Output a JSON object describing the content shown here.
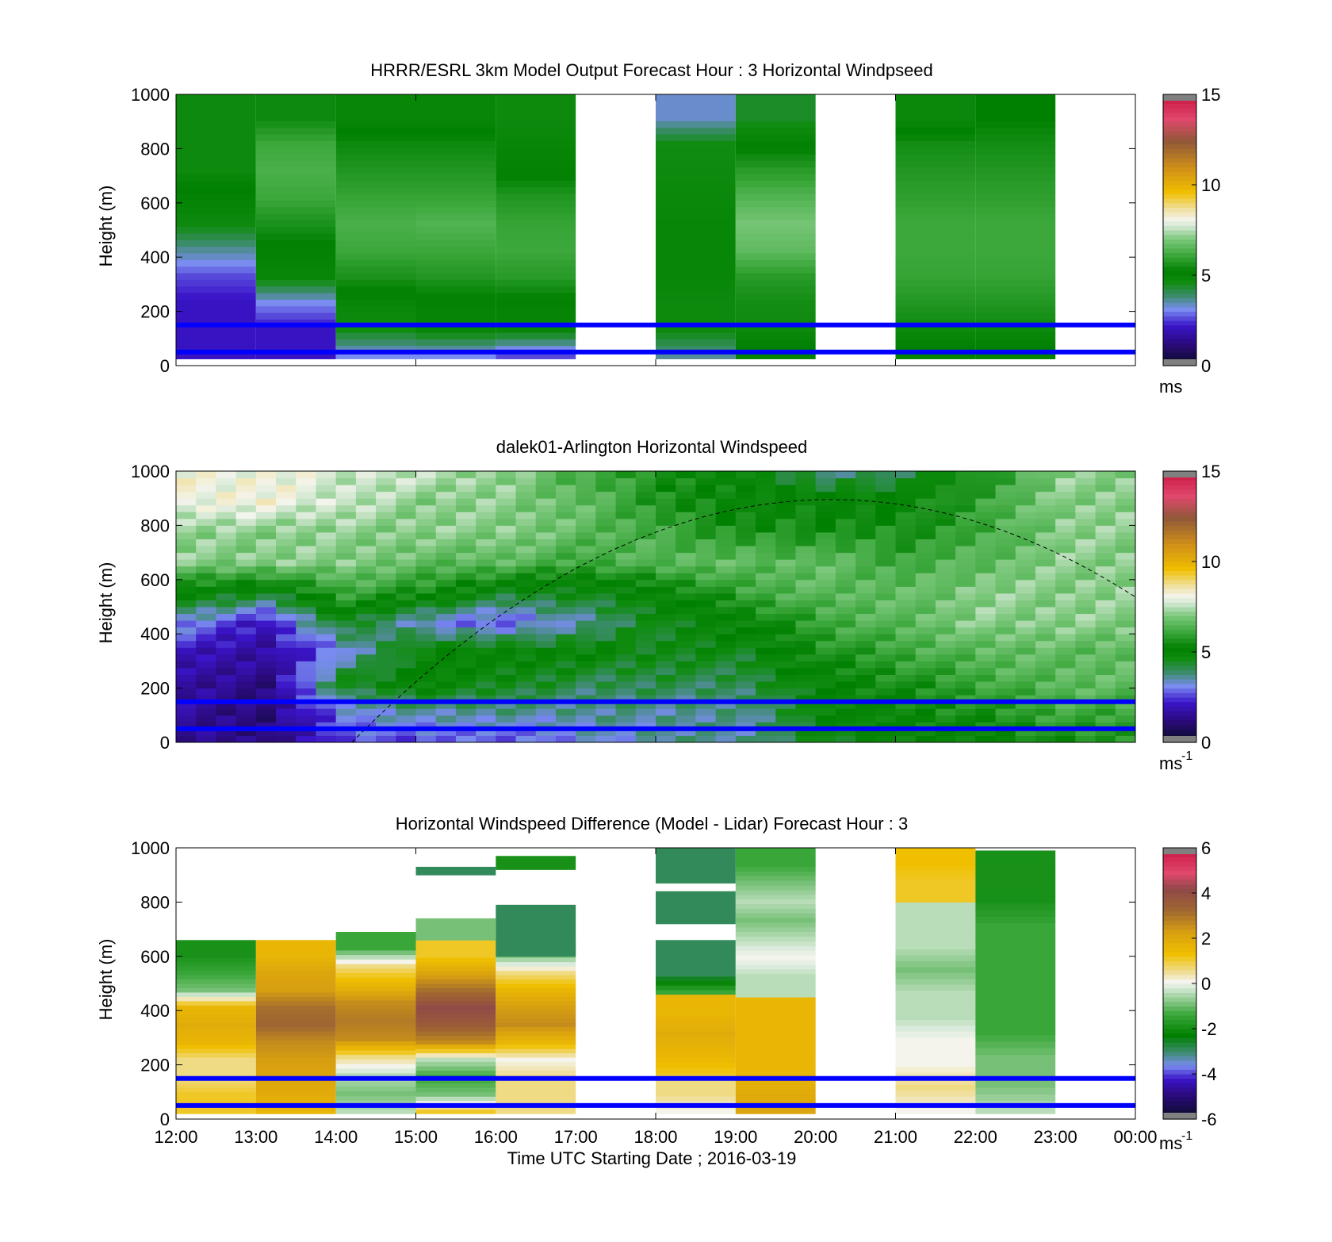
{
  "chart_data": [
    {
      "type": "heatmap",
      "title": "HRRR/ESRL 3km Model Output   Forecast Hour : 3 Horizontal Windpseed",
      "ylabel": "Height (m)",
      "yticks": [
        "0",
        "200",
        "400",
        "600",
        "800",
        "1000"
      ],
      "ylim": [
        0,
        1000
      ],
      "xlim": [
        "12:00",
        "00:00"
      ],
      "colorbar": {
        "ticks": [
          "0",
          "5",
          "10",
          "15"
        ],
        "range": [
          0,
          15
        ],
        "unit": "ms",
        "unit_sup": ""
      },
      "reference_lines_m": [
        50,
        150
      ],
      "columns": [
        {
          "start": 0,
          "end": 1,
          "top_m": 1000,
          "speeds": [
            2.0,
            2.0,
            2.0,
            2.5,
            3.5,
            4.6,
            5.0,
            5.3,
            5.3,
            5.3
          ]
        },
        {
          "start": 1,
          "end": 2,
          "top_m": 1000,
          "speeds": [
            2.0,
            2.0,
            3.0,
            4.8,
            5.0,
            5.5,
            6.0,
            6.2,
            6.0,
            5.3
          ]
        },
        {
          "start": 2,
          "end": 3,
          "top_m": 1000,
          "speeds": [
            3.0,
            4.5,
            4.8,
            5.5,
            6.0,
            6.2,
            5.9,
            5.6,
            5.3,
            4.8
          ]
        },
        {
          "start": 3,
          "end": 4,
          "top_m": 1000,
          "speeds": [
            3.0,
            4.8,
            5.0,
            5.6,
            6.0,
            6.3,
            5.9,
            5.6,
            5.3,
            4.8
          ]
        },
        {
          "start": 4,
          "end": 5,
          "top_m": 1000,
          "speeds": [
            2.5,
            4.8,
            5.0,
            5.7,
            6.0,
            5.9,
            5.6,
            5.0,
            4.8,
            4.6
          ]
        },
        {
          "start": 6,
          "end": 7,
          "top_m": 1000,
          "speeds": [
            3.5,
            4.6,
            4.6,
            4.8,
            4.8,
            4.8,
            4.7,
            4.6,
            4.5,
            3.2
          ]
        },
        {
          "start": 7,
          "end": 8,
          "top_m": 1000,
          "speeds": [
            5.0,
            5.3,
            5.4,
            5.7,
            6.5,
            6.8,
            6.3,
            5.7,
            5.0,
            4.3
          ]
        },
        {
          "start": 9,
          "end": 10,
          "top_m": 1000,
          "speeds": [
            5.0,
            5.3,
            5.6,
            5.9,
            6.0,
            6.0,
            5.8,
            5.6,
            5.4,
            4.7
          ]
        },
        {
          "start": 10,
          "end": 11,
          "top_m": 1000,
          "speeds": [
            5.0,
            5.3,
            5.6,
            5.9,
            6.0,
            6.0,
            5.8,
            5.6,
            5.4,
            5.1
          ]
        }
      ]
    },
    {
      "type": "heatmap",
      "title": "dalek01-Arlington  Horizontal Windspeed",
      "ylabel": "Height (m)",
      "yticks": [
        "0",
        "200",
        "400",
        "600",
        "800",
        "1000"
      ],
      "ylim": [
        0,
        1000
      ],
      "xlim": [
        "12:00",
        "00:00"
      ],
      "colorbar": {
        "ticks": [
          "0",
          "5",
          "10",
          "15"
        ],
        "range": [
          0,
          15
        ],
        "unit": "ms",
        "unit_sup": "-1"
      },
      "reference_lines_m": [
        50,
        150
      ],
      "curve": {
        "x_hours": [
          2.2,
          8.2,
          12.0
        ],
        "y_m": [
          0,
          895,
          480
        ]
      },
      "hourly_profiles": [
        {
          "hour": 0,
          "speeds": [
            1.5,
            1.5,
            1.5,
            2.0,
            3.0,
            5.0,
            7.0,
            7.0,
            8.0,
            8.0
          ]
        },
        {
          "hour": 1,
          "speeds": [
            1.0,
            1.0,
            1.2,
            1.5,
            2.0,
            4.5,
            7.0,
            7.0,
            8.0,
            8.0
          ]
        },
        {
          "hour": 2,
          "speeds": [
            2.5,
            3.0,
            4.5,
            3.0,
            4.5,
            6.0,
            7.0,
            7.0,
            7.5,
            7.5
          ]
        },
        {
          "hour": 3,
          "speeds": [
            2.5,
            3.5,
            5.0,
            5.0,
            3.0,
            5.5,
            6.5,
            7.0,
            7.0,
            7.5
          ]
        },
        {
          "hour": 4,
          "speeds": [
            2.5,
            3.5,
            4.5,
            5.0,
            2.5,
            4.5,
            6.5,
            7.0,
            7.0,
            7.0
          ]
        },
        {
          "hour": 5,
          "speeds": [
            3.0,
            3.5,
            4.0,
            4.8,
            3.5,
            4.5,
            6.0,
            6.5,
            6.5,
            6.0
          ]
        },
        {
          "hour": 6,
          "speeds": [
            3.5,
            3.5,
            4.0,
            4.5,
            4.5,
            5.0,
            6.5,
            6.0,
            5.5,
            5.5
          ]
        },
        {
          "hour": 7,
          "speeds": [
            3.5,
            3.5,
            4.0,
            4.5,
            5.0,
            6.0,
            6.5,
            5.5,
            5.0,
            5.0
          ]
        },
        {
          "hour": 8,
          "speeds": [
            4.5,
            4.8,
            5.0,
            5.5,
            6.0,
            6.5,
            6.5,
            5.5,
            5.0,
            3.5
          ]
        },
        {
          "hour": 9,
          "speeds": [
            5.0,
            5.2,
            5.5,
            6.0,
            6.5,
            6.5,
            6.0,
            5.5,
            5.0,
            4.0
          ]
        },
        {
          "hour": 10,
          "speeds": [
            5.0,
            5.5,
            6.0,
            6.5,
            7.0,
            7.0,
            6.5,
            6.0,
            6.0,
            5.5
          ]
        },
        {
          "hour": 11,
          "speeds": [
            5.5,
            6.0,
            6.5,
            6.5,
            7.0,
            7.0,
            7.0,
            7.0,
            7.0,
            7.0
          ]
        }
      ]
    },
    {
      "type": "heatmap",
      "title": "Horizontal Windspeed Difference (Model - Lidar) Forecast Hour : 3",
      "ylabel": "Height (m)",
      "xlabel": "Time UTC  Starting Date ; 2016-03-19",
      "yticks": [
        "0",
        "200",
        "400",
        "600",
        "800",
        "1000"
      ],
      "xticks": [
        "12:00",
        "13:00",
        "14:00",
        "15:00",
        "16:00",
        "17:00",
        "18:00",
        "19:00",
        "20:00",
        "21:00",
        "22:00",
        "23:00",
        "00:00"
      ],
      "ylim": [
        0,
        1000
      ],
      "colorbar": {
        "ticks": [
          "6",
          "4",
          "2",
          "0",
          "-2",
          "-4",
          "-6"
        ],
        "range": [
          -6,
          6
        ],
        "unit": "ms",
        "unit_sup": "-1"
      },
      "reference_lines_m": [
        50,
        150
      ],
      "columns": [
        {
          "start": 0,
          "end": 1,
          "bottom_m": 20,
          "top_m": 660,
          "diffs": [
            1.0,
            1.0,
            0.5,
            0.5,
            1.5,
            1.8,
            1.5,
            -1.0,
            -1.5,
            -2.0
          ]
        },
        {
          "start": 1,
          "end": 2,
          "bottom_m": 20,
          "top_m": 660,
          "diffs": [
            1.5,
            1.8,
            2.0,
            2.2,
            2.5,
            3.2,
            3.0,
            2.2,
            2.0,
            1.5
          ]
        },
        {
          "start": 2,
          "end": 3,
          "bottom_m": 20,
          "top_m": 690,
          "diffs": [
            -0.5,
            -1.0,
            -0.5,
            0.5,
            2.5,
            2.8,
            2.5,
            1.5,
            0.5,
            -1.5
          ]
        },
        {
          "start": 3,
          "end": 4,
          "bottom_m": 20,
          "top_m": 660,
          "diffs": [
            1.0,
            -1.0,
            -1.5,
            -0.5,
            2.5,
            3.5,
            4.0,
            3.0,
            2.0,
            1.0
          ]
        },
        {
          "start": 4,
          "end": 5,
          "bottom_m": 20,
          "top_m": 660,
          "diffs": [
            0.5,
            0.5,
            0.5,
            0.0,
            1.5,
            2.5,
            2.2,
            1.5,
            0.5,
            -1.0
          ]
        },
        {
          "start": 4,
          "end": 5,
          "bottom_m": 600,
          "top_m": 790,
          "diffs": [
            -3.0,
            -3.0,
            -3.0
          ]
        },
        {
          "start": 4,
          "end": 5,
          "bottom_m": 920,
          "top_m": 970,
          "diffs": [
            -2.0
          ]
        },
        {
          "start": 3,
          "end": 4,
          "bottom_m": 900,
          "top_m": 930,
          "diffs": [
            -3.0
          ]
        },
        {
          "start": 3,
          "end": 4,
          "bottom_m": 660,
          "top_m": 740,
          "diffs": [
            -1.0
          ]
        },
        {
          "start": 6,
          "end": 7,
          "bottom_m": 20,
          "top_m": 150,
          "diffs": [
            0.0,
            0.5
          ]
        },
        {
          "start": 6,
          "end": 7,
          "bottom_m": 150,
          "top_m": 460,
          "diffs": [
            1.0,
            1.5,
            1.8,
            1.5
          ]
        },
        {
          "start": 6,
          "end": 7,
          "bottom_m": 460,
          "top_m": 660,
          "diffs": [
            -1.5,
            -3.0,
            -3.0
          ]
        },
        {
          "start": 6,
          "end": 7,
          "bottom_m": 720,
          "top_m": 840,
          "diffs": [
            -3.0,
            -3.0
          ]
        },
        {
          "start": 6,
          "end": 7,
          "bottom_m": 870,
          "top_m": 1000,
          "diffs": [
            -3.0,
            -3.0
          ]
        },
        {
          "start": 7,
          "end": 8,
          "bottom_m": 20,
          "top_m": 450,
          "diffs": [
            2.0,
            1.8,
            1.5,
            1.5,
            1.5,
            1.5
          ]
        },
        {
          "start": 7,
          "end": 8,
          "bottom_m": 450,
          "top_m": 1000,
          "diffs": [
            -0.5,
            -0.5,
            0.0,
            -0.5,
            -1.0,
            -0.5,
            -1.0,
            -1.5
          ]
        },
        {
          "start": 9,
          "end": 10,
          "bottom_m": 20,
          "top_m": 800,
          "diffs": [
            0.0,
            0.5,
            0.0,
            0.0,
            -0.5,
            -0.5,
            -1.0,
            -0.5,
            -0.5
          ]
        },
        {
          "start": 9,
          "end": 10,
          "bottom_m": 800,
          "top_m": 1000,
          "diffs": [
            1.0,
            1.0,
            1.2
          ]
        },
        {
          "start": 10,
          "end": 11,
          "bottom_m": 20,
          "top_m": 990,
          "diffs": [
            -0.5,
            -1.0,
            -1.0,
            -1.5,
            -1.5,
            -1.5,
            -1.5,
            -1.5,
            -2.0,
            -2.0
          ]
        }
      ]
    }
  ]
}
